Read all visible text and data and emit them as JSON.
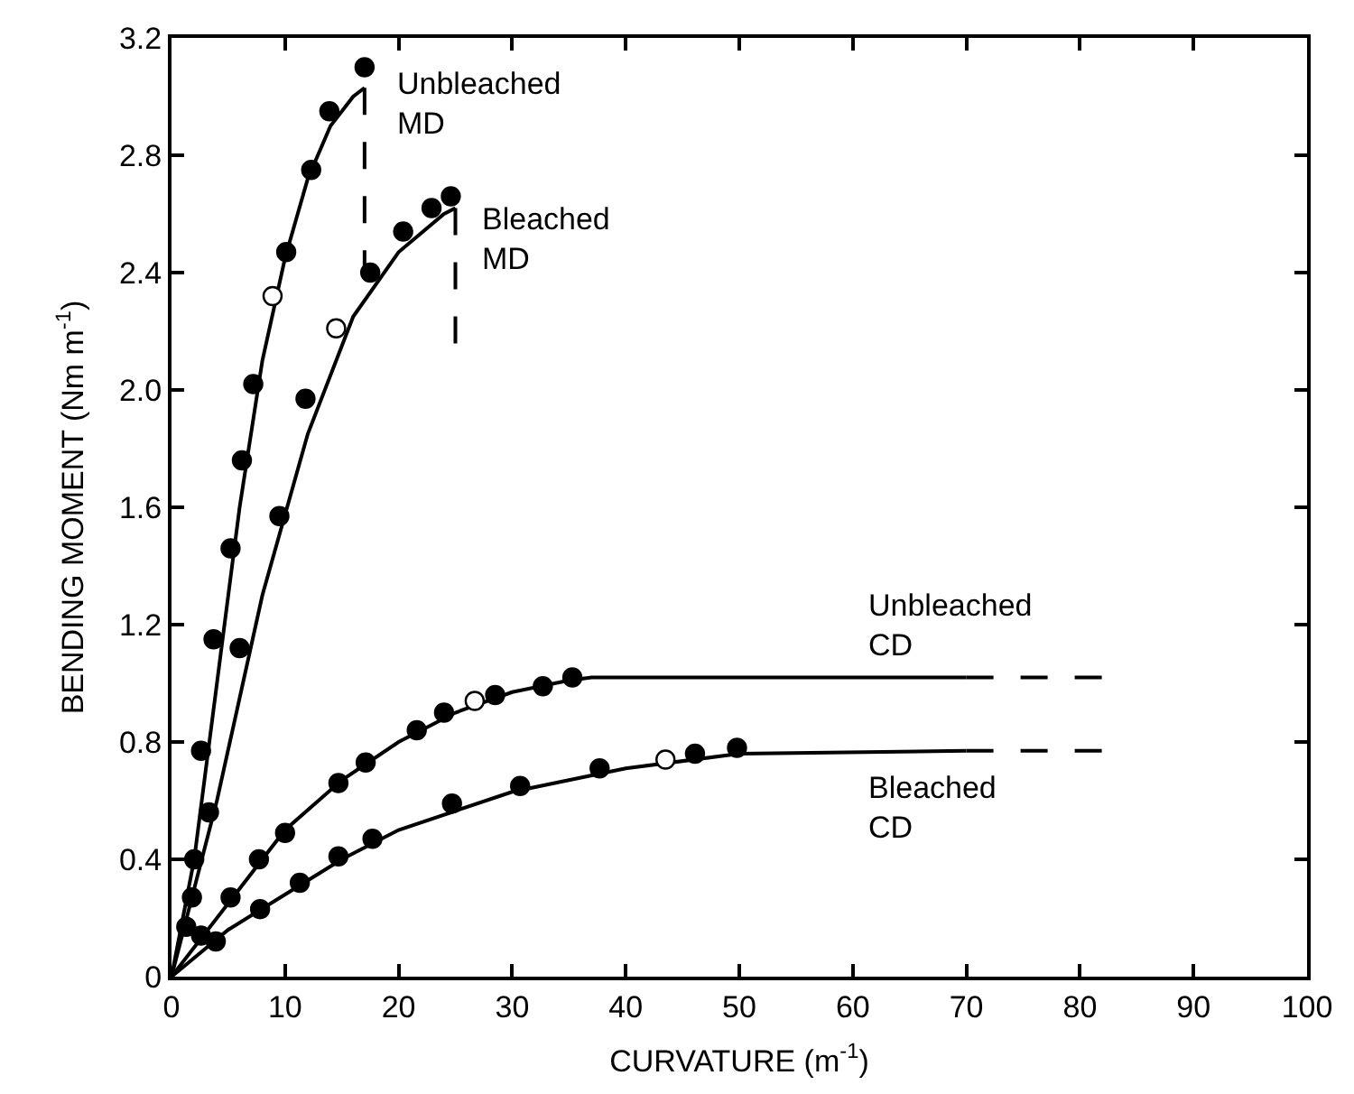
{
  "chart_data": {
    "type": "scatter",
    "xlabel": "CURVATURE (m$^{-1}$)",
    "ylabel": "BENDING MOMENT (Nm m$^{-1}$)",
    "xlim": [
      0,
      100
    ],
    "ylim": [
      0,
      3.2
    ],
    "xticks": [
      0,
      10,
      20,
      30,
      40,
      50,
      60,
      70,
      80,
      90,
      100
    ],
    "yticks": [
      0,
      0.4,
      0.8,
      1.2,
      1.6,
      {
        "value": 2,
        "label": "2.0"
      },
      2.4,
      2.8,
      3.2
    ],
    "marker": "circle",
    "series": [
      {
        "type": "line",
        "color": "#000000",
        "marker": "none",
        "line_style": "solid",
        "x": [
          0,
          2,
          4,
          6,
          8,
          10,
          12,
          14,
          16,
          17
        ],
        "values": [
          0,
          0.4,
          1.0,
          1.6,
          2.1,
          2.45,
          2.72,
          2.9,
          3.0,
          3.03
        ]
      },
      {
        "type": "line",
        "color": "#000000",
        "marker": "none",
        "line_style": "dashed",
        "x": [
          17,
          17
        ],
        "values": [
          3.03,
          2.35
        ]
      },
      {
        "type": "line",
        "color": "#000000",
        "marker": "none",
        "line_style": "solid",
        "x": [
          0,
          4,
          8,
          12,
          16,
          20,
          24,
          25
        ],
        "values": [
          0,
          0.6,
          1.3,
          1.85,
          2.25,
          2.47,
          2.6,
          2.62
        ]
      },
      {
        "type": "line",
        "color": "#000000",
        "marker": "none",
        "line_style": "dashed",
        "x": [
          25,
          25
        ],
        "values": [
          2.62,
          2.15
        ]
      },
      {
        "type": "line",
        "color": "#000000",
        "marker": "none",
        "line_style": "solid",
        "x": [
          0,
          5,
          10,
          15,
          20,
          25,
          30,
          35,
          37,
          70
        ],
        "values": [
          0,
          0.25,
          0.5,
          0.67,
          0.8,
          0.9,
          0.97,
          1.01,
          1.02,
          1.02
        ]
      },
      {
        "type": "line",
        "color": "#000000",
        "marker": "none",
        "line_style": "dashed",
        "x": [
          70,
          82
        ],
        "values": [
          1.02,
          1.02
        ]
      },
      {
        "type": "line",
        "color": "#000000",
        "marker": "none",
        "line_style": "solid",
        "x": [
          0,
          5,
          10,
          15,
          20,
          30,
          40,
          50,
          70
        ],
        "values": [
          0,
          0.16,
          0.28,
          0.4,
          0.5,
          0.63,
          0.71,
          0.76,
          0.77
        ]
      },
      {
        "type": "line",
        "color": "#000000",
        "marker": "none",
        "line_style": "dashed",
        "x": [
          70,
          82
        ],
        "values": [
          0.77,
          0.77
        ]
      },
      {
        "color": "#000000",
        "x": [
          1.3,
          1.8,
          2.0,
          2.6,
          3.7,
          5.2,
          6.2,
          7.2,
          10.1,
          12.3,
          13.9,
          17.0
        ],
        "values": [
          0.17,
          0.27,
          0.4,
          0.77,
          1.15,
          1.46,
          1.76,
          2.02,
          2.47,
          2.75,
          2.95,
          3.1
        ]
      },
      {
        "color": "#000000",
        "x": [
          3.3,
          6.0,
          9.5,
          11.8,
          17.5,
          20.4,
          22.9,
          24.6
        ],
        "values": [
          0.56,
          1.12,
          1.57,
          1.97,
          2.4,
          2.54,
          2.62,
          2.66
        ]
      },
      {
        "color": "#000000",
        "x": [
          2.6,
          5.2,
          7.7,
          10.0,
          14.7,
          17.1,
          21.6,
          24.0,
          28.5,
          32.7,
          35.3
        ],
        "values": [
          0.14,
          0.27,
          0.4,
          0.49,
          0.66,
          0.73,
          0.84,
          0.9,
          0.96,
          0.99,
          1.02
        ]
      },
      {
        "color": "#000000",
        "x": [
          3.9,
          7.8,
          11.3,
          14.7,
          17.7,
          24.7,
          30.7,
          37.7,
          46.1,
          49.8
        ],
        "values": [
          0.12,
          0.23,
          0.32,
          0.41,
          0.47,
          0.59,
          0.65,
          0.71,
          0.76,
          0.78
        ]
      },
      {
        "color": "#ffffff",
        "x": [
          8.9,
          14.5,
          26.7,
          43.5
        ],
        "values": [
          2.32,
          2.21,
          0.94,
          0.74
        ]
      }
    ],
    "annotations": [
      "Unbleached\nMD",
      "Bleached\nMD",
      "Unbleached\nCD",
      "Bleached\nCD"
    ]
  }
}
